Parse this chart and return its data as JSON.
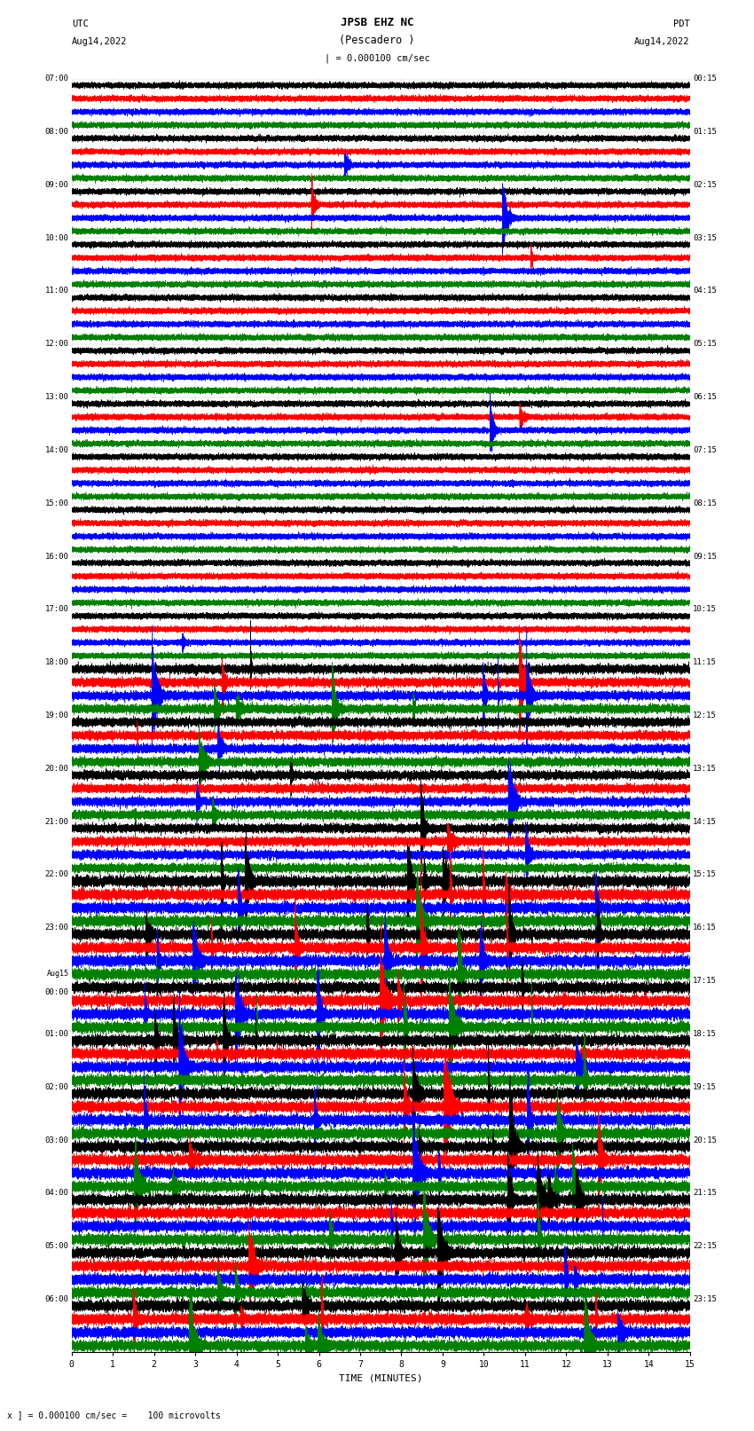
{
  "title_line1": "JPSB EHZ NC",
  "title_line2": "(Pescadero )",
  "scale_label": "| = 0.000100 cm/sec",
  "left_label_top": "UTC",
  "left_label_date": "Aug14,2022",
  "right_label_top": "PDT",
  "right_label_date": "Aug14,2022",
  "xlabel": "TIME (MINUTES)",
  "bottom_note": "x ] = 0.000100 cm/sec =    100 microvolts",
  "utc_times": [
    "07:00",
    "08:00",
    "09:00",
    "10:00",
    "11:00",
    "12:00",
    "13:00",
    "14:00",
    "15:00",
    "16:00",
    "17:00",
    "18:00",
    "19:00",
    "20:00",
    "21:00",
    "22:00",
    "23:00",
    "Aug15 00:00",
    "01:00",
    "02:00",
    "03:00",
    "04:00",
    "05:00",
    "06:00"
  ],
  "pdt_times": [
    "00:15",
    "01:15",
    "02:15",
    "03:15",
    "04:15",
    "05:15",
    "06:15",
    "07:15",
    "08:15",
    "09:15",
    "10:15",
    "11:15",
    "12:15",
    "13:15",
    "14:15",
    "15:15",
    "16:15",
    "17:15",
    "18:15",
    "19:15",
    "20:15",
    "21:15",
    "22:15",
    "23:15"
  ],
  "trace_colors": [
    "black",
    "red",
    "blue",
    "green"
  ],
  "n_rows": 24,
  "traces_per_row": 4,
  "minutes": 15,
  "sample_rate": 50,
  "background_color": "white",
  "fig_width": 8.5,
  "fig_height": 16.13
}
